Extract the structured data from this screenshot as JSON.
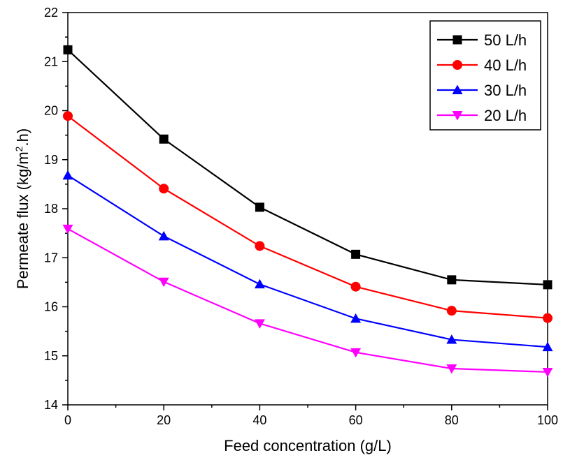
{
  "chart_data": {
    "type": "line",
    "xlabel": "Feed concentration (g/L)",
    "ylabel_parts": {
      "before": "Permeate flux (kg/m",
      "sup": "2",
      "after": ".h)"
    },
    "xlim": [
      0,
      100
    ],
    "ylim": [
      14,
      22
    ],
    "x_ticks": [
      "0",
      "20",
      "40",
      "60",
      "80",
      "100"
    ],
    "y_ticks": [
      "14",
      "15",
      "16",
      "17",
      "18",
      "19",
      "20",
      "21",
      "22"
    ],
    "x": [
      0,
      20,
      40,
      60,
      80,
      100
    ],
    "legend_position": "top-right",
    "grid": false,
    "series": [
      {
        "name": "50 L/h",
        "color": "#000000",
        "marker": "square",
        "values": [
          21.24,
          19.42,
          18.03,
          17.07,
          16.55,
          16.45
        ]
      },
      {
        "name": "40 L/h",
        "color": "#ff0000",
        "marker": "circle",
        "values": [
          19.89,
          18.41,
          17.24,
          16.41,
          15.92,
          15.77
        ]
      },
      {
        "name": "30 L/h",
        "color": "#0000ff",
        "marker": "triangle-up",
        "values": [
          18.68,
          17.44,
          16.46,
          15.76,
          15.33,
          15.18
        ]
      },
      {
        "name": "20 L/h",
        "color": "#ff00ff",
        "marker": "triangle-down",
        "values": [
          17.59,
          16.51,
          15.66,
          15.07,
          14.74,
          14.67
        ]
      }
    ]
  }
}
